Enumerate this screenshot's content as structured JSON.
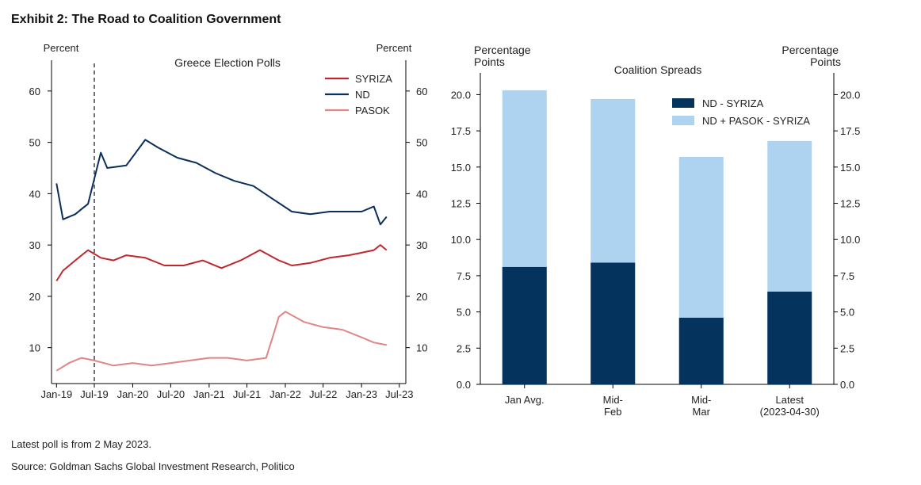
{
  "exhibit_title": "Exhibit 2: The Road to Coalition Government",
  "footnotes": {
    "note": "Latest poll is from 2 May 2023.",
    "source": "Source: Goldman Sachs Global Investment Research, Politico"
  },
  "chart_data": [
    {
      "type": "line",
      "title": "Greece Election Polls",
      "ylabel_left": "Percent",
      "ylabel_right": "Percent",
      "ylim": [
        3,
        66
      ],
      "yticks": [
        10,
        20,
        30,
        40,
        50,
        60
      ],
      "x_range": [
        "2019-01",
        "2023-07"
      ],
      "xticks": [
        "Jan-19",
        "Jul-19",
        "Jan-20",
        "Jul-20",
        "Jan-21",
        "Jul-21",
        "Jan-22",
        "Jul-22",
        "Jan-23",
        "Jul-23"
      ],
      "vertical_marker": {
        "x": "2019-07",
        "style": "dashed"
      },
      "grid": false,
      "legend_position": "top-right",
      "colors": {
        "SYRIZA": "#c0272d",
        "ND": "#0a2f5a",
        "PASOK": "#e08585"
      },
      "series": [
        {
          "name": "SYRIZA",
          "x": [
            "2019-01",
            "2019-02",
            "2019-04",
            "2019-05",
            "2019-06",
            "2019-08",
            "2019-10",
            "2019-12",
            "2020-03",
            "2020-06",
            "2020-09",
            "2020-12",
            "2021-03",
            "2021-06",
            "2021-09",
            "2021-12",
            "2022-02",
            "2022-05",
            "2022-08",
            "2022-11",
            "2023-01",
            "2023-03",
            "2023-04",
            "2023-05"
          ],
          "values": [
            23,
            25,
            27,
            28,
            29,
            27.5,
            27,
            28,
            27.5,
            26,
            26,
            27,
            25.5,
            27,
            29,
            27,
            26,
            26.5,
            27.5,
            28,
            28.5,
            29,
            30,
            29
          ]
        },
        {
          "name": "ND",
          "x": [
            "2019-01",
            "2019-02",
            "2019-04",
            "2019-05",
            "2019-06",
            "2019-08",
            "2019-09",
            "2019-12",
            "2020-03",
            "2020-05",
            "2020-08",
            "2020-11",
            "2021-02",
            "2021-05",
            "2021-08",
            "2021-11",
            "2022-02",
            "2022-05",
            "2022-08",
            "2022-11",
            "2023-01",
            "2023-03",
            "2023-04",
            "2023-05"
          ],
          "values": [
            42,
            35,
            36,
            37,
            38,
            48,
            45,
            45.5,
            50.5,
            49,
            47,
            46,
            44,
            42.5,
            41.5,
            39,
            36.5,
            36,
            36.5,
            36.5,
            36.5,
            37.5,
            34,
            35.5
          ]
        },
        {
          "name": "PASOK",
          "x": [
            "2019-01",
            "2019-03",
            "2019-05",
            "2019-07",
            "2019-10",
            "2020-01",
            "2020-04",
            "2020-07",
            "2020-10",
            "2021-01",
            "2021-04",
            "2021-07",
            "2021-10",
            "2021-11",
            "2021-12",
            "2022-01",
            "2022-04",
            "2022-07",
            "2022-10",
            "2023-01",
            "2023-03",
            "2023-05"
          ],
          "values": [
            5.5,
            7,
            8,
            7.5,
            6.5,
            7,
            6.5,
            7,
            7.5,
            8,
            8,
            7.5,
            8,
            12,
            16,
            17,
            15,
            14,
            13.5,
            12,
            11,
            10.5
          ]
        }
      ]
    },
    {
      "type": "bar",
      "title": "Coalition Spreads",
      "ylabel_left": "Percentage Points",
      "ylabel_right": "Percentage Points",
      "ylim": [
        0,
        21.5
      ],
      "yticks": [
        "0.0",
        "2.5",
        "5.0",
        "7.5",
        "10.0",
        "12.5",
        "15.0",
        "17.5",
        "20.0"
      ],
      "categories": [
        "Jan Avg.",
        "Mid- Feb",
        "Mid- Mar",
        "Latest (2023-04-30)"
      ],
      "category_lines": [
        [
          "Jan Avg."
        ],
        [
          "Mid-",
          "Feb"
        ],
        [
          "Mid-",
          "Mar"
        ],
        [
          "Latest",
          "(2023-04-30)"
        ]
      ],
      "series": [
        {
          "name": "ND - SYRIZA",
          "color": "#04335e",
          "values": [
            8.1,
            8.4,
            4.6,
            6.4
          ]
        },
        {
          "name": "ND + PASOK - SYRIZA",
          "color": "#add3f0",
          "values": [
            20.3,
            19.7,
            15.7,
            16.8
          ]
        }
      ],
      "grid": false,
      "legend_position": "top-right"
    }
  ]
}
